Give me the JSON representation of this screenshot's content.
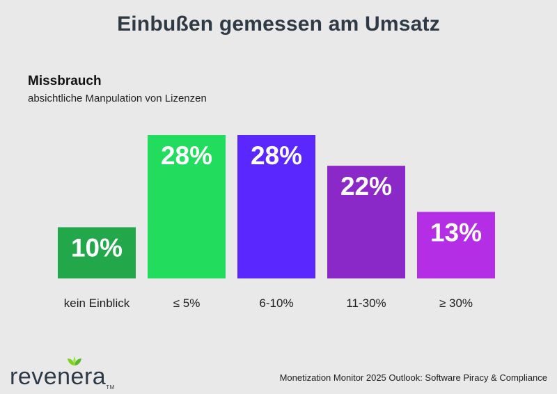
{
  "chart_data": {
    "type": "bar",
    "title": "Einbußen gemessen am Umsatz",
    "subtitle": "Missbrauch",
    "description": "absichtliche Manpulation von Lizenzen",
    "categories": [
      "kein Einblick",
      "≤ 5%",
      "6-10%",
      "11-30%",
      "≥ 30%"
    ],
    "values": [
      10,
      28,
      28,
      22,
      13
    ],
    "value_labels": [
      "10%",
      "28%",
      "28%",
      "22%",
      "13%"
    ],
    "colors": [
      "#22a84a",
      "#22dc5e",
      "#5a28ff",
      "#8a28c8",
      "#b42ee6"
    ],
    "ylim": [
      0,
      28
    ],
    "xlabel": "",
    "ylabel": ""
  },
  "footer": {
    "logo_text": "revenera",
    "logo_tm": "TM",
    "source": "Monetization Monitor 2025 Outlook: Software Piracy & Compliance"
  }
}
